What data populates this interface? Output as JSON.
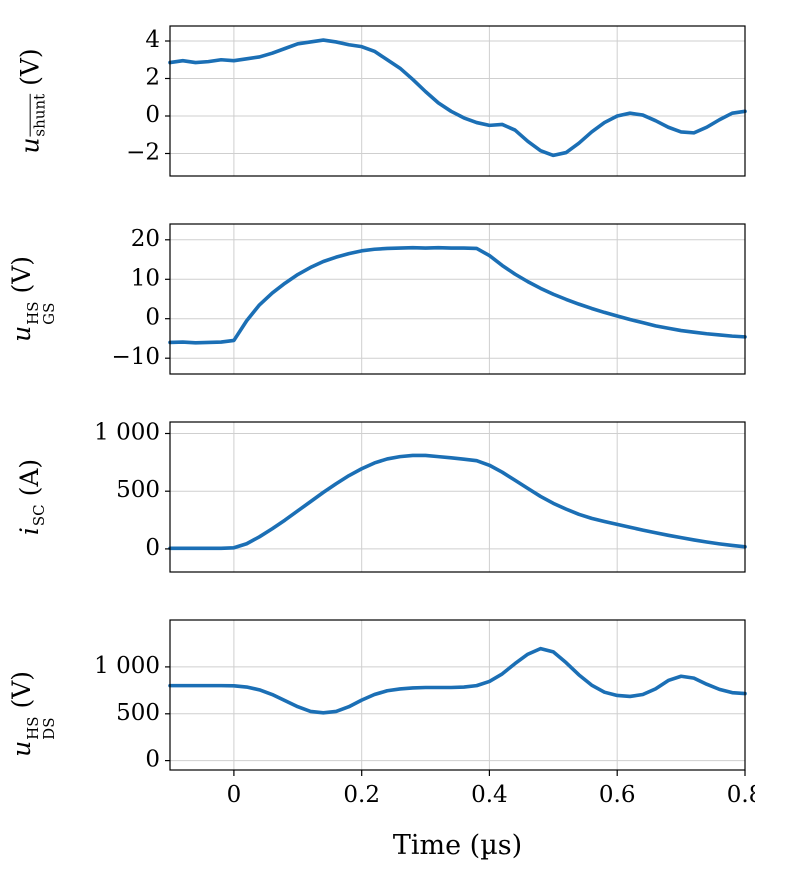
{
  "figure": {
    "xlabel": "Time (µs)",
    "x_range": [
      -0.1,
      0.8
    ],
    "x_ticks": [
      0,
      0.2,
      0.4,
      0.6,
      0.8
    ],
    "x_tick_labels": [
      "0",
      "0.2",
      "0.4",
      "0.6",
      "0.8"
    ],
    "line_color": "#1b6fb5",
    "grid_color": "#cfcfcf",
    "frame_color": "#000000",
    "x": [
      -0.1,
      -0.08,
      -0.06,
      -0.04,
      -0.02,
      0.0,
      0.02,
      0.04,
      0.06,
      0.08,
      0.1,
      0.12,
      0.14,
      0.16,
      0.18,
      0.2,
      0.22,
      0.24,
      0.26,
      0.28,
      0.3,
      0.32,
      0.34,
      0.36,
      0.38,
      0.4,
      0.42,
      0.44,
      0.46,
      0.48,
      0.5,
      0.52,
      0.54,
      0.56,
      0.58,
      0.6,
      0.62,
      0.64,
      0.66,
      0.68,
      0.7,
      0.72,
      0.74,
      0.76,
      0.78,
      0.8
    ]
  },
  "chart_data": [
    {
      "type": "line",
      "name": "u-shunt",
      "ylabel": {
        "var": "u",
        "sub": "shunt",
        "sub_overline": true,
        "sup": "",
        "unit": "(V)"
      },
      "ylim": [
        -3.2,
        4.8
      ],
      "yticks": [
        -2,
        0,
        2,
        4
      ],
      "ytick_labels": [
        "−2",
        "0",
        "2",
        "4"
      ],
      "values": [
        2.85,
        2.95,
        2.85,
        2.9,
        3.0,
        2.95,
        3.05,
        3.15,
        3.35,
        3.6,
        3.85,
        3.95,
        4.05,
        3.95,
        3.8,
        3.7,
        3.45,
        3.0,
        2.55,
        1.95,
        1.3,
        0.7,
        0.25,
        -0.1,
        -0.35,
        -0.5,
        -0.45,
        -0.75,
        -1.35,
        -1.85,
        -2.1,
        -1.95,
        -1.45,
        -0.85,
        -0.35,
        0.0,
        0.15,
        0.05,
        -0.25,
        -0.6,
        -0.85,
        -0.9,
        -0.6,
        -0.2,
        0.15,
        0.25
      ]
    },
    {
      "type": "line",
      "name": "u-GS-HS",
      "ylabel": {
        "var": "u",
        "sub": "GS",
        "sub_overline": false,
        "sup": "HS",
        "unit": "(V)"
      },
      "ylim": [
        -14,
        24
      ],
      "yticks": [
        -10,
        0,
        10,
        20
      ],
      "ytick_labels": [
        "−10",
        "0",
        "10",
        "20"
      ],
      "values": [
        -6.0,
        -5.9,
        -6.1,
        -6.0,
        -5.9,
        -5.5,
        -0.5,
        3.5,
        6.5,
        9.0,
        11.2,
        13.0,
        14.5,
        15.6,
        16.5,
        17.2,
        17.6,
        17.8,
        17.9,
        18.0,
        17.9,
        18.0,
        17.9,
        17.9,
        17.8,
        16.0,
        13.5,
        11.3,
        9.4,
        7.7,
        6.2,
        4.9,
        3.7,
        2.6,
        1.6,
        0.7,
        -0.2,
        -1.0,
        -1.8,
        -2.4,
        -3.0,
        -3.4,
        -3.8,
        -4.1,
        -4.4,
        -4.6
      ]
    },
    {
      "type": "line",
      "name": "i-SC",
      "ylabel": {
        "var": "i",
        "sub": "SC",
        "sub_overline": false,
        "sup": "",
        "unit": "(A)"
      },
      "ylim": [
        -200,
        1100
      ],
      "yticks": [
        0,
        500,
        1000
      ],
      "ytick_labels": [
        "0",
        "500",
        "1 000"
      ],
      "values": [
        5,
        5,
        5,
        5,
        5,
        10,
        45,
        105,
        175,
        250,
        330,
        410,
        490,
        565,
        635,
        695,
        745,
        780,
        800,
        810,
        810,
        800,
        790,
        778,
        765,
        725,
        665,
        595,
        525,
        455,
        395,
        345,
        300,
        265,
        238,
        213,
        188,
        163,
        140,
        118,
        98,
        78,
        60,
        44,
        30,
        18
      ]
    },
    {
      "type": "line",
      "name": "u-DS-HS",
      "ylabel": {
        "var": "u",
        "sub": "DS",
        "sub_overline": false,
        "sup": "HS",
        "unit": "(V)"
      },
      "ylim": [
        -100,
        1500
      ],
      "yticks": [
        0,
        500,
        1000
      ],
      "ytick_labels": [
        "0",
        "500",
        "1 000"
      ],
      "values": [
        800,
        800,
        800,
        800,
        800,
        798,
        785,
        755,
        705,
        640,
        575,
        525,
        510,
        525,
        575,
        645,
        705,
        745,
        765,
        775,
        780,
        780,
        780,
        785,
        800,
        845,
        925,
        1035,
        1135,
        1195,
        1160,
        1045,
        915,
        805,
        730,
        695,
        685,
        705,
        765,
        855,
        900,
        880,
        815,
        760,
        725,
        715
      ]
    }
  ]
}
